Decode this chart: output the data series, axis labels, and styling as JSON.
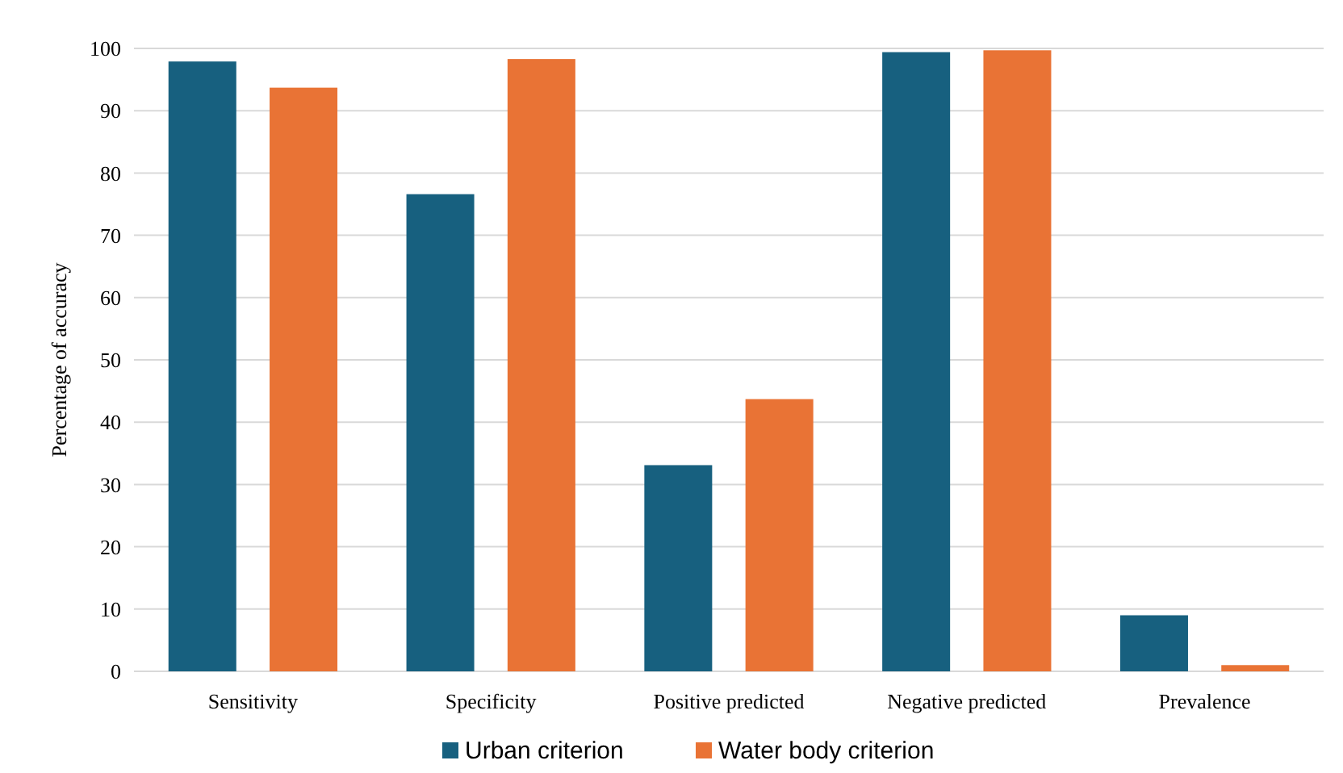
{
  "chart_data": {
    "type": "bar",
    "ylabel": "Percentage  of accuracy",
    "categories": [
      "Sensitivity",
      "Specificity",
      "Positive predicted",
      "Negative predicted",
      "Prevalence"
    ],
    "series": [
      {
        "name": "Urban criterion",
        "color": "#17607f",
        "values": [
          97.9,
          76.6,
          33.1,
          99.4,
          9.0
        ]
      },
      {
        "name": "Water body criterion",
        "color": "#e97335",
        "values": [
          93.7,
          98.3,
          43.7,
          99.7,
          1.0
        ]
      }
    ],
    "ylim": [
      0,
      100
    ],
    "yticks": [
      0,
      10,
      20,
      30,
      40,
      50,
      60,
      70,
      80,
      90,
      100
    ],
    "grid": "y",
    "legend": "bottom"
  }
}
